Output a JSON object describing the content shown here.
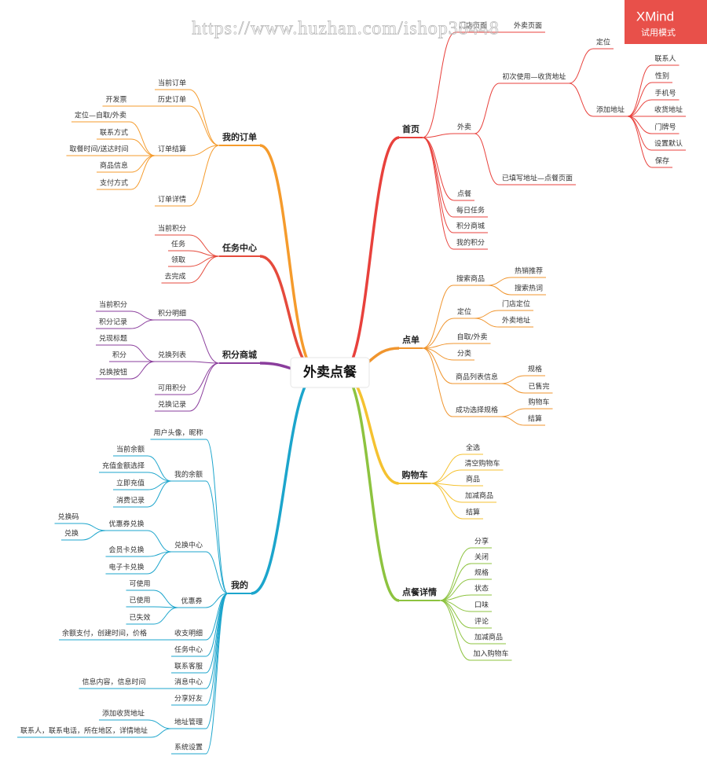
{
  "watermark": "https://www.huzhan.com/ishop38448",
  "badge": {
    "title": "XMind",
    "subtitle": "试用模式"
  },
  "root": {
    "label": "外卖点餐",
    "children": [
      {
        "label": "首页",
        "color": "#e8413c",
        "children": [
          {
            "label": "门店页面",
            "children": [
              {
                "label": "外卖页面"
              }
            ]
          },
          {
            "label": "外卖",
            "children": [
              {
                "label": "初次使用—收货地址",
                "children": [
                  {
                    "label": "定位"
                  },
                  {
                    "label": "添加地址",
                    "children": [
                      {
                        "label": "联系人"
                      },
                      {
                        "label": "性别"
                      },
                      {
                        "label": "手机号"
                      },
                      {
                        "label": "收货地址"
                      },
                      {
                        "label": "门牌号"
                      },
                      {
                        "label": "设置默认"
                      },
                      {
                        "label": "保存"
                      }
                    ]
                  }
                ]
              },
              {
                "label": "已填写地址—点餐页面"
              }
            ]
          },
          {
            "label": "点餐"
          },
          {
            "label": "每日任务"
          },
          {
            "label": "积分商城"
          },
          {
            "label": "我的积分"
          }
        ]
      },
      {
        "label": "点单",
        "color": "#f0952e",
        "children": [
          {
            "label": "搜索商品",
            "children": [
              {
                "label": "热销推荐"
              },
              {
                "label": "搜索热词"
              }
            ]
          },
          {
            "label": "定位",
            "children": [
              {
                "label": "门店定位"
              },
              {
                "label": "外卖地址"
              }
            ]
          },
          {
            "label": "自取/外卖"
          },
          {
            "label": "分类"
          },
          {
            "label": "商品列表信息",
            "children": [
              {
                "label": "规格"
              },
              {
                "label": "已售完"
              }
            ]
          },
          {
            "label": "成功选择规格",
            "children": [
              {
                "label": "购物车"
              },
              {
                "label": "结算"
              }
            ]
          }
        ]
      },
      {
        "label": "购物车",
        "color": "#f5c230",
        "children": [
          {
            "label": "全选"
          },
          {
            "label": "清空购物车"
          },
          {
            "label": "商品"
          },
          {
            "label": "加减商品"
          },
          {
            "label": "结算"
          }
        ]
      },
      {
        "label": "点餐详情",
        "color": "#8dc33f",
        "children": [
          {
            "label": "分享"
          },
          {
            "label": "关闭"
          },
          {
            "label": "规格"
          },
          {
            "label": "状态"
          },
          {
            "label": "口味"
          },
          {
            "label": "评论"
          },
          {
            "label": "加减商品"
          },
          {
            "label": "加入购物车"
          }
        ]
      },
      {
        "label": "我的订单",
        "color": "#f59b2c",
        "children": [
          {
            "label": "当前订单"
          },
          {
            "label": "历史订单",
            "children": [
              {
                "label": "开发票"
              }
            ]
          },
          {
            "label": "订单结算",
            "children": [
              {
                "label": "定位—自取/外卖"
              },
              {
                "label": "联系方式"
              },
              {
                "label": "取餐时间/送达时间"
              },
              {
                "label": "商品信息"
              },
              {
                "label": "支付方式"
              }
            ]
          },
          {
            "label": "订单详情"
          }
        ]
      },
      {
        "label": "任务中心",
        "color": "#e54a3c",
        "children": [
          {
            "label": "当前积分"
          },
          {
            "label": "任务"
          },
          {
            "label": "领取"
          },
          {
            "label": "去完成"
          }
        ]
      },
      {
        "label": "积分商城",
        "color": "#8a3d9c",
        "children": [
          {
            "label": "积分明细",
            "children": [
              {
                "label": "当前积分"
              },
              {
                "label": "积分记录"
              }
            ]
          },
          {
            "label": "兑换列表",
            "children": [
              {
                "label": "兑现标题"
              },
              {
                "label": "积分"
              },
              {
                "label": "兑换按钮"
              }
            ]
          },
          {
            "label": "可用积分"
          },
          {
            "label": "兑换记录"
          }
        ]
      },
      {
        "label": "我的",
        "color": "#1ca5cc",
        "children": [
          {
            "label": "用户头像，昵称"
          },
          {
            "label": "我的余额",
            "children": [
              {
                "label": "当前余额"
              },
              {
                "label": "充值金额选择"
              },
              {
                "label": "立即充值"
              },
              {
                "label": "消费记录"
              }
            ]
          },
          {
            "label": "兑换中心",
            "children": [
              {
                "label": "优惠券兑换",
                "children": [
                  {
                    "label": "兑换码"
                  },
                  {
                    "label": "兑换"
                  }
                ]
              },
              {
                "label": "会员卡兑换"
              },
              {
                "label": "电子卡兑换"
              }
            ]
          },
          {
            "label": "优惠券",
            "children": [
              {
                "label": "可使用"
              },
              {
                "label": "已使用"
              },
              {
                "label": "已失效"
              }
            ]
          },
          {
            "label": "收支明细",
            "children": [
              {
                "label": "余额支付，创建时间，价格"
              }
            ]
          },
          {
            "label": "任务中心"
          },
          {
            "label": "联系客服"
          },
          {
            "label": "消息中心",
            "children": [
              {
                "label": "信息内容，信息时间"
              }
            ]
          },
          {
            "label": "分享好友"
          },
          {
            "label": "地址管理",
            "children": [
              {
                "label": "添加收货地址"
              },
              {
                "label": "联系人，联系电话，所在地区，详情地址"
              }
            ]
          },
          {
            "label": "系统设置"
          }
        ]
      }
    ]
  }
}
